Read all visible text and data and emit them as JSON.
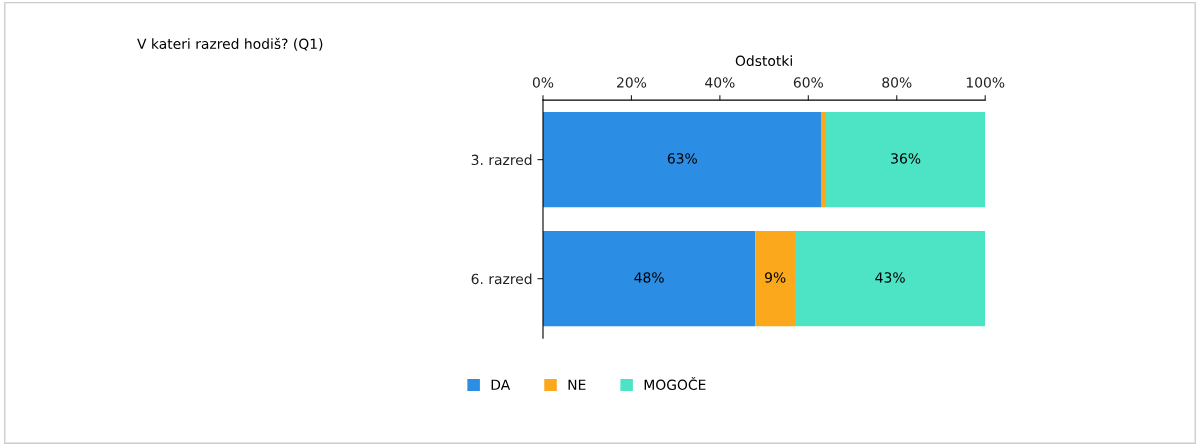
{
  "chart_data": {
    "type": "bar",
    "orientation": "horizontal",
    "stacked": true,
    "title": "V kateri razred hodiš? (Q1)",
    "xlabel": "Odstotki",
    "categories": [
      "3. razred",
      "6. razred"
    ],
    "series": [
      {
        "name": "DA",
        "color": "#2b8de3",
        "values": [
          63,
          48
        ],
        "value_labels": [
          "63%",
          "48%"
        ]
      },
      {
        "name": "NE",
        "color": "#fca81c",
        "values": [
          1,
          9
        ],
        "value_labels": [
          null,
          "9%"
        ]
      },
      {
        "name": "MOGOČE",
        "color": "#4de3c5",
        "values": [
          36,
          43
        ],
        "value_labels": [
          "36%",
          "43%"
        ]
      }
    ],
    "xlim": [
      0,
      100
    ],
    "xticks": [
      {
        "value": 0,
        "label": "0%"
      },
      {
        "value": 20,
        "label": "20%"
      },
      {
        "value": 40,
        "label": "40%"
      },
      {
        "value": 60,
        "label": "60%"
      },
      {
        "value": 80,
        "label": "80%"
      },
      {
        "value": 100,
        "label": "100%"
      }
    ],
    "grid": false,
    "legend": "bottom"
  }
}
